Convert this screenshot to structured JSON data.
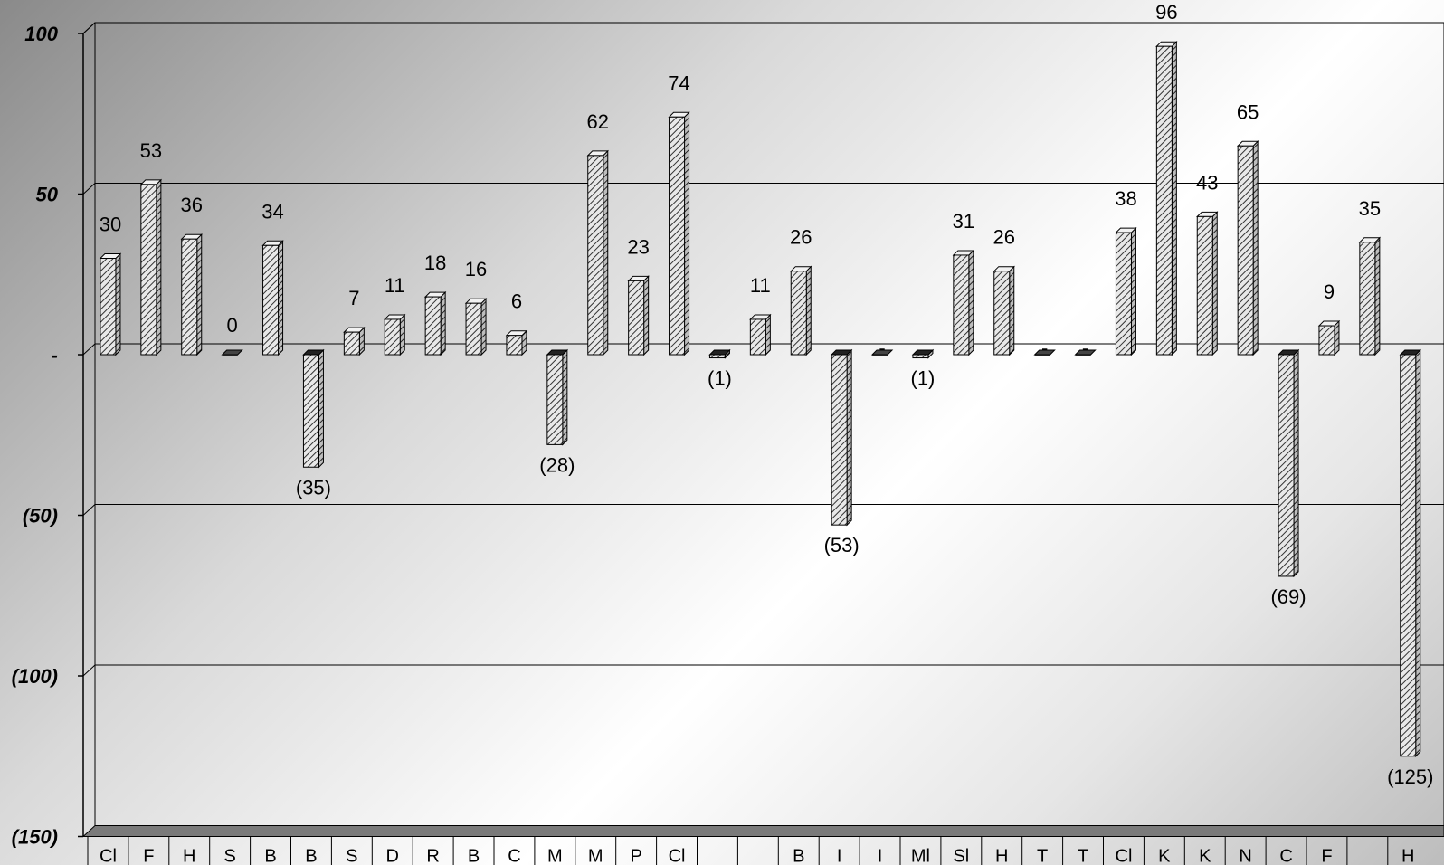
{
  "chart_data": {
    "type": "bar",
    "style": "3d-column",
    "title": "",
    "xlabel": "",
    "ylabel": "",
    "ylim": [
      -150,
      100
    ],
    "yticks": [
      100,
      50,
      0,
      -50,
      -100,
      -150
    ],
    "ytick_labels": [
      "100",
      "50",
      "-",
      "(50)",
      "(100)",
      "(150)"
    ],
    "grid": true,
    "legend": "none",
    "categories": [
      "Cl",
      "F",
      "H",
      "S",
      "B",
      "B",
      "S",
      "D",
      "R",
      "B",
      "C",
      "M",
      "M",
      "P",
      "Cl",
      "",
      "",
      "B",
      "I",
      "I",
      "Ml",
      "Sl",
      "H",
      "T",
      "T",
      "Cl",
      "K",
      "K",
      "N",
      "C",
      "F",
      "",
      "H"
    ],
    "values": [
      30,
      53,
      36,
      0,
      34,
      -35,
      7,
      11,
      18,
      16,
      6,
      -28,
      62,
      23,
      74,
      -1,
      11,
      26,
      -53,
      0,
      -1,
      31,
      26,
      0,
      0,
      38,
      96,
      43,
      65,
      -69,
      9,
      35,
      -125
    ],
    "value_labels": [
      "30",
      "53",
      "36",
      "0",
      "34",
      "(35)",
      "7",
      "11",
      "18",
      "16",
      "6",
      "(28)",
      "62",
      "23",
      "74",
      "(1)",
      "11",
      "26",
      "(53)",
      "-",
      "(1)",
      "31",
      "26",
      "-",
      "-",
      "38",
      "96",
      "43",
      "65",
      "(69)",
      "9",
      "35",
      "(125)"
    ],
    "colors": {
      "bar_face": "#d8d8d8",
      "bar_hatch": "#333333",
      "bar_side": "#9a9a9a",
      "floor": "#7a7a7a",
      "axis": "#000000"
    }
  }
}
